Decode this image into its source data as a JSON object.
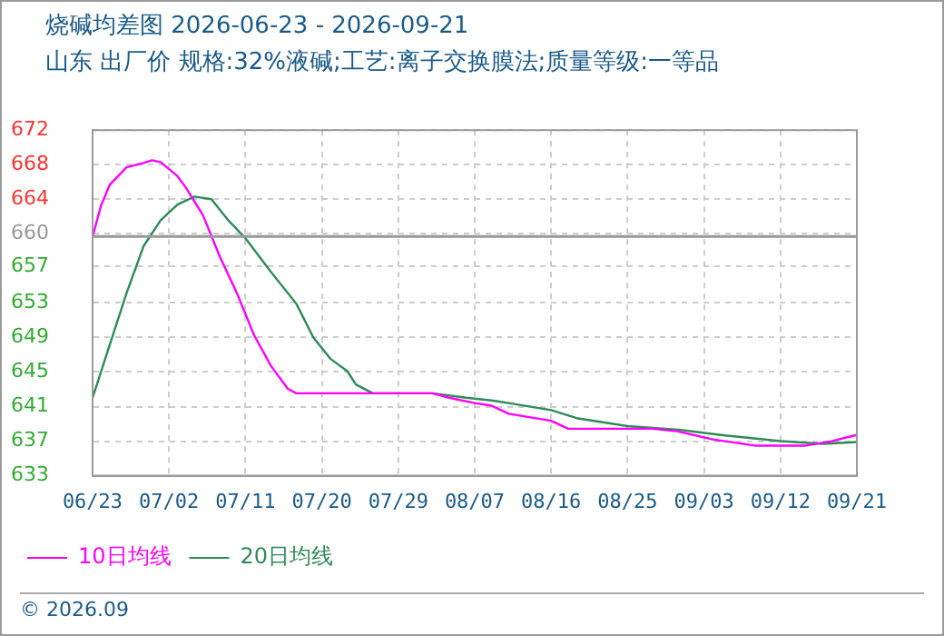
{
  "chart_data": {
    "type": "line",
    "title": "烧碱均差图 2026-06-23 - 2026-09-21",
    "subtitle": "山东 出厂价 规格:32%液碱;工艺:离子交换膜法;质量等级:一等品",
    "series": [
      {
        "name": "10日均线",
        "color": "#ff00ff",
        "x": [
          "2026-06-23",
          "2026-06-24",
          "2026-06-25",
          "2026-06-27",
          "2026-06-29",
          "2026-06-30",
          "2026-07-01",
          "2026-07-03",
          "2026-07-04",
          "2026-07-06",
          "2026-07-08",
          "2026-07-10",
          "2026-07-12",
          "2026-07-14",
          "2026-07-16",
          "2026-07-17",
          "2026-08-02",
          "2026-08-04",
          "2026-08-07",
          "2026-08-09",
          "2026-08-11",
          "2026-08-16",
          "2026-08-18",
          "2026-08-28",
          "2026-08-31",
          "2026-09-04",
          "2026-09-09",
          "2026-09-15",
          "2026-09-18",
          "2026-09-21"
        ],
        "values": [
          660,
          663.5,
          665.8,
          667.8,
          668.3,
          668.6,
          668.4,
          666.8,
          665.5,
          662.4,
          657.7,
          653.6,
          648.9,
          645.4,
          642.8,
          642.3,
          642.3,
          641.8,
          641.2,
          640.9,
          640,
          639.2,
          638.3,
          638.3,
          638,
          637.1,
          636.4,
          636.4,
          636.9,
          637.6
        ]
      },
      {
        "name": "20日均线",
        "color": "#2e8b57",
        "x": [
          "2026-06-23",
          "2026-06-25",
          "2026-06-27",
          "2026-06-29",
          "2026-07-01",
          "2026-07-03",
          "2026-07-05",
          "2026-07-07",
          "2026-07-09",
          "2026-07-11",
          "2026-07-14",
          "2026-07-17",
          "2026-07-19",
          "2026-07-21",
          "2026-07-23",
          "2026-07-24",
          "2026-07-26",
          "2026-08-02",
          "2026-08-06",
          "2026-08-09",
          "2026-08-11",
          "2026-08-16",
          "2026-08-19",
          "2026-08-25",
          "2026-08-31",
          "2026-09-05",
          "2026-09-12",
          "2026-09-17",
          "2026-09-21"
        ],
        "values": [
          641.8,
          647.7,
          653.6,
          658.9,
          661.8,
          663.6,
          664.5,
          664.2,
          661.8,
          659.8,
          656,
          652.4,
          648.6,
          646.2,
          644.8,
          643.3,
          642.3,
          642.3,
          641.8,
          641.5,
          641.2,
          640.4,
          639.5,
          638.6,
          638.2,
          637.6,
          636.9,
          636.6,
          636.8
        ]
      }
    ],
    "xlim": [
      "2026-06-23",
      "2026-09-21"
    ],
    "xticks": [
      {
        "value": "2026-06-23",
        "label": "06/23"
      },
      {
        "value": "2026-07-02",
        "label": "07/02"
      },
      {
        "value": "2026-07-11",
        "label": "07/11"
      },
      {
        "value": "2026-07-20",
        "label": "07/20"
      },
      {
        "value": "2026-07-29",
        "label": "07/29"
      },
      {
        "value": "2026-08-07",
        "label": "08/07"
      },
      {
        "value": "2026-08-16",
        "label": "08/16"
      },
      {
        "value": "2026-08-25",
        "label": "08/25"
      },
      {
        "value": "2026-09-03",
        "label": "09/03"
      },
      {
        "value": "2026-09-12",
        "label": "09/12"
      },
      {
        "value": "2026-09-21",
        "label": "09/21"
      }
    ],
    "ylim": [
      633,
      672
    ],
    "yticks": [
      {
        "value": 633,
        "label": "633"
      },
      {
        "value": 636.9,
        "label": "637"
      },
      {
        "value": 640.8,
        "label": "641"
      },
      {
        "value": 644.7,
        "label": "645"
      },
      {
        "value": 648.6,
        "label": "649"
      },
      {
        "value": 652.5,
        "label": "653"
      },
      {
        "value": 656.6,
        "label": "657"
      },
      {
        "value": 660.3,
        "label": "660"
      },
      {
        "value": 664.2,
        "label": "664"
      },
      {
        "value": 668.1,
        "label": "668"
      },
      {
        "value": 672,
        "label": "672"
      }
    ],
    "ref_lines": [
      {
        "axis": "y",
        "value": 660,
        "color": "#999999"
      }
    ],
    "annotations": [
      "© 2026.09"
    ],
    "grid": true,
    "legend": "bottom left",
    "marker": "none",
    "line_style": "solid"
  }
}
